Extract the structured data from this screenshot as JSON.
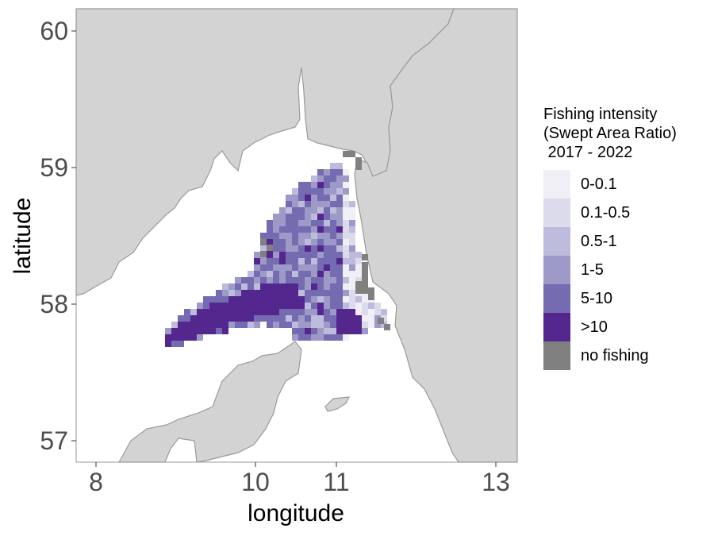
{
  "map": {
    "xlabel": "longitude",
    "ylabel": "latitude",
    "x_ticks": [
      "8",
      "10",
      "11",
      "13"
    ],
    "y_ticks": [
      "57",
      "58",
      "59",
      "60"
    ],
    "colors": {
      "land": "#d3d3d3",
      "coast": "#9a9a9a",
      "sea": "#ffffff",
      "no_fishing": "#808080"
    }
  },
  "legend": {
    "title": "Fishing intensity\n(Swept Area Ratio)\n 2017 - 2022",
    "items": [
      {
        "label": "0-0.1",
        "color": "#f0eff6"
      },
      {
        "label": "0.1-0.5",
        "color": "#dcdbec"
      },
      {
        "label": "0.5-1",
        "color": "#bdbcdc"
      },
      {
        "label": "1-5",
        "color": "#9e9ac8"
      },
      {
        "label": "5-10",
        "color": "#756bb1"
      },
      {
        "label": ">10",
        "color": "#54278f"
      },
      {
        "label": "no fishing",
        "color": "#808080"
      }
    ]
  }
}
